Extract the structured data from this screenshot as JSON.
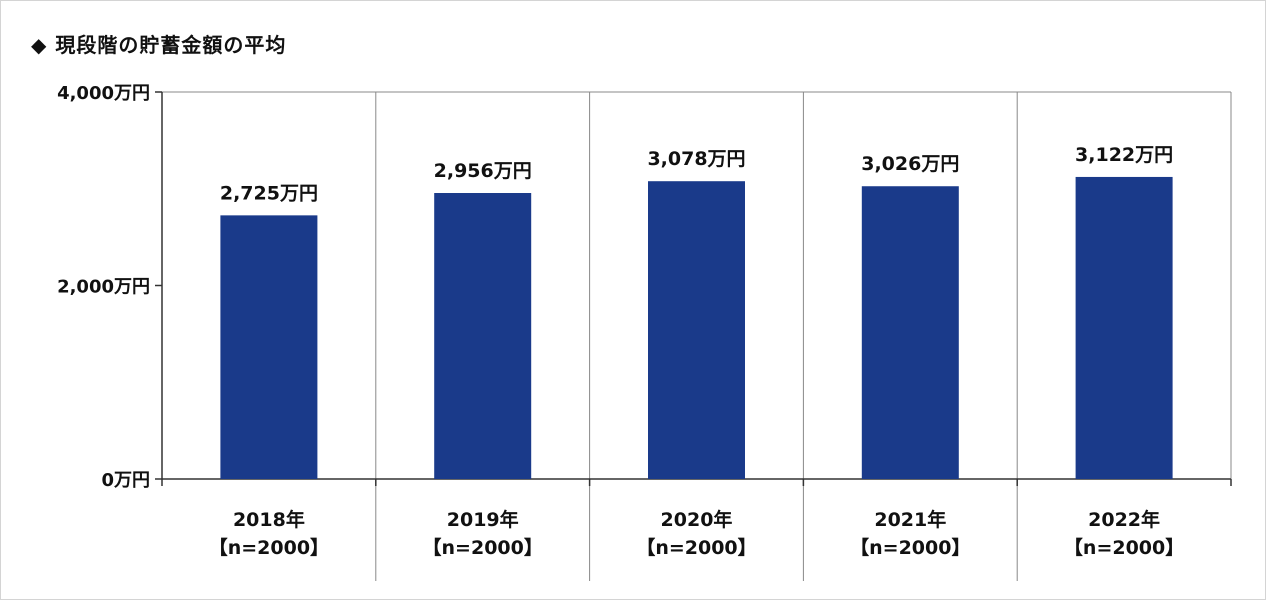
{
  "title": "◆ 現段階の貯蓄金額の平均",
  "colors": {
    "bar": "#1a3a8a",
    "axis": "#333333",
    "grid": "#888888",
    "text": "#111111"
  },
  "chart_data": {
    "type": "bar",
    "title": "◆ 現段階の貯蓄金額の平均",
    "categories": [
      "2018年",
      "2019年",
      "2020年",
      "2021年",
      "2022年"
    ],
    "category_subs": [
      "【n=2000】",
      "【n=2000】",
      "【n=2000】",
      "【n=2000】",
      "【n=2000】"
    ],
    "values": [
      2725,
      2956,
      3078,
      3026,
      3122
    ],
    "value_labels": [
      "2,725万円",
      "2,956万円",
      "3,078万円",
      "3,026万円",
      "3,122万円"
    ],
    "unit": "万円",
    "ylim": [
      0,
      4000
    ],
    "yticks": [
      0,
      2000,
      4000
    ],
    "ytick_labels": [
      "0万円",
      "2,000万円",
      "4,000万円"
    ],
    "grid": "vertical separators between categories",
    "legend": "none"
  }
}
